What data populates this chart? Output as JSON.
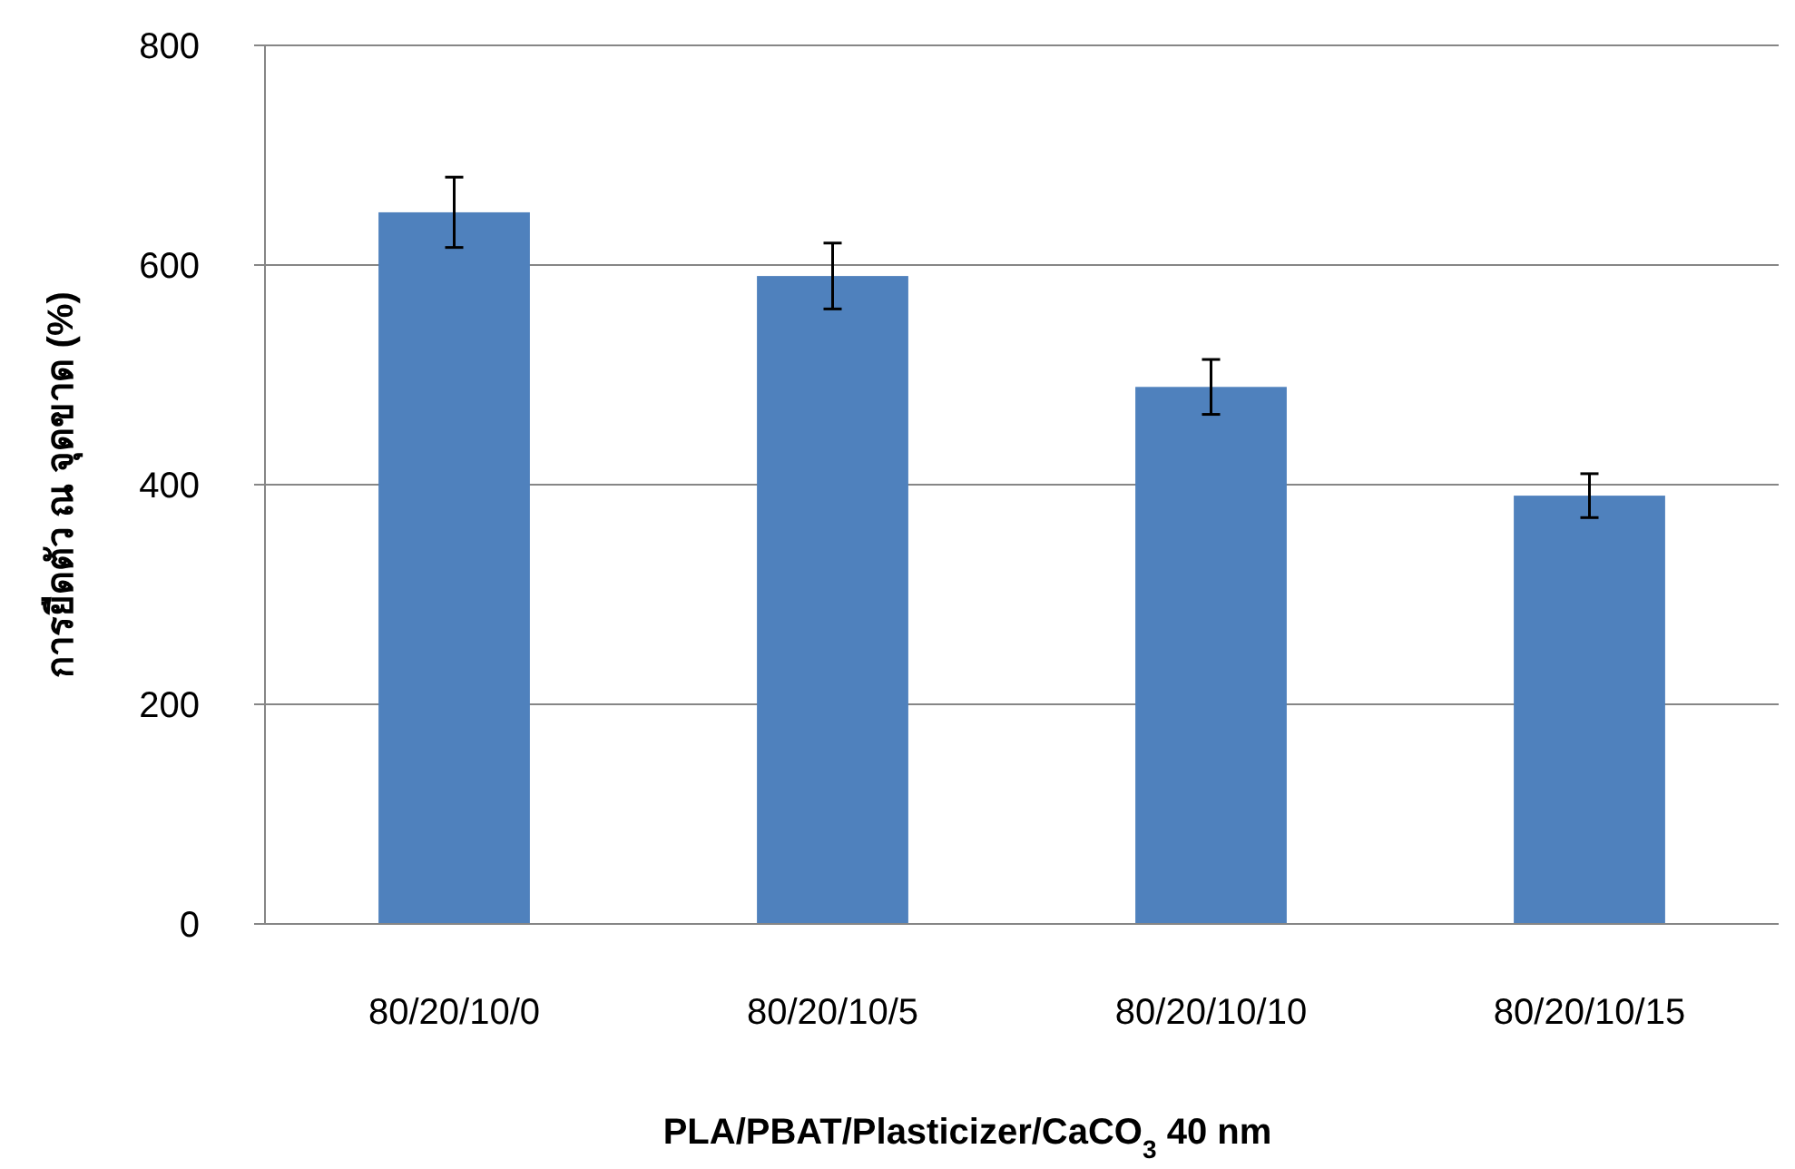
{
  "chart_data": {
    "type": "bar",
    "xlabel": "PLA/PBAT/Plasticizer/CaCO$_{3}$ 40 nm",
    "ylabel": "การยืดตัว ณ จุดขาด (%)",
    "categories": [
      "80/20/10/0",
      "80/20/10/5",
      "80/20/10/10",
      "80/20/10/15"
    ],
    "values": [
      648,
      590,
      489,
      390
    ],
    "errors": [
      32,
      30,
      25,
      20
    ],
    "color": "#4f81bd",
    "ylim": [
      0,
      800
    ],
    "yticks": [
      0,
      200,
      400,
      600,
      800
    ],
    "grid": "y"
  }
}
